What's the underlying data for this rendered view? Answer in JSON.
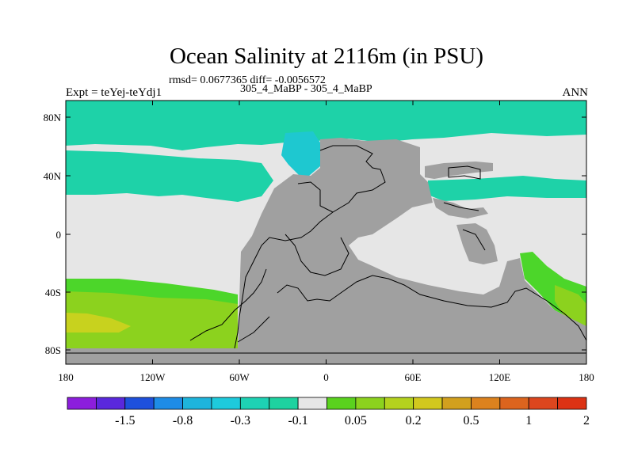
{
  "title": "Ocean Salinity at 2116m (in PSU)",
  "rmsd_line": "rmsd= 0.0677365 diff= -0.0056572",
  "runs_line": "305_4_MaBP - 305_4_MaBP",
  "left_label": "Expt = teYej-teYdj1",
  "right_label": "ANN",
  "map": {
    "lat_ticks": [
      "80N",
      "40N",
      "0",
      "40S",
      "80S"
    ],
    "lon_ticks": [
      "180",
      "120W",
      "60W",
      "0",
      "60E",
      "120E",
      "180"
    ],
    "land_color": "#a0a0a0",
    "ocean_classes": {
      "neutral": "#e6e6e6",
      "slightly_negative": "#1ed2a8",
      "negative": "#1ec8d0",
      "positive_low": "#4cd62a",
      "positive": "#8cd21e",
      "positive_high": "#c8d21e"
    }
  },
  "colorbar": {
    "labels": [
      "-1.5",
      "-0.8",
      "-0.3",
      "-0.1",
      "0.05",
      "0.2",
      "0.5",
      "1",
      "2"
    ],
    "colors": [
      "#8c1edc",
      "#5a28dc",
      "#1e50dc",
      "#1e8ce6",
      "#1eb4dc",
      "#1ecadc",
      "#1ed2b4",
      "#1ed2a0",
      "#e6e6e6",
      "#5ad21e",
      "#8cd21e",
      "#b4d21e",
      "#d2c81e",
      "#d2a01e",
      "#dc821e",
      "#dc641e",
      "#dc461e",
      "#dc3214"
    ]
  }
}
